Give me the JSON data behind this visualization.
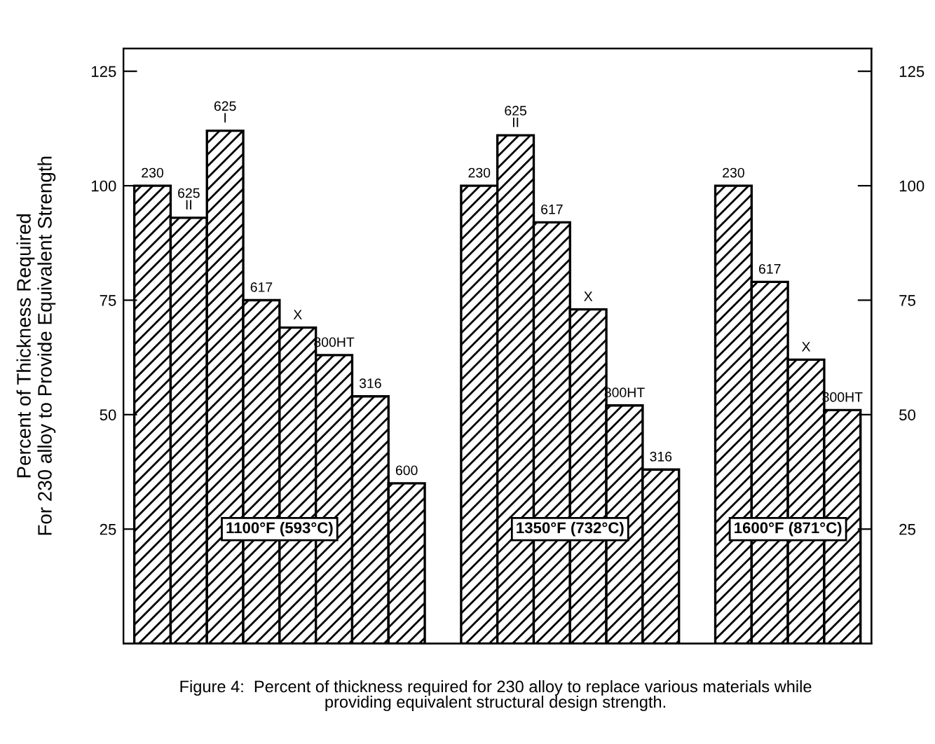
{
  "chart_data": {
    "type": "bar",
    "ylabel": "Percent of Thickness Required\nFor 230 alloy to Provide Equivalent Strength",
    "categories": [
      "230",
      "625\nII",
      "625\nI",
      "617",
      "X",
      "800HT",
      "316",
      "600",
      null,
      "230",
      "625\nII",
      "617",
      "X",
      "800HT",
      "316",
      null,
      "230",
      "617",
      "X",
      "800HT"
    ],
    "values": [
      100,
      93,
      112,
      75,
      69,
      63,
      54,
      35,
      null,
      100,
      111,
      92,
      73,
      52,
      38,
      null,
      100,
      79,
      62,
      51
    ],
    "color": "#000000",
    "ylim": [
      0,
      130
    ],
    "yticks": [
      25,
      50,
      75,
      100,
      125
    ],
    "y2lim": [
      0,
      130
    ],
    "y2ticks": [
      25,
      50,
      75,
      100,
      125
    ],
    "grid": false,
    "annotations": [
      "1100°F (593°C)",
      "1350°F (732°C)",
      "1600°F (871°C)",
      "Figure 4:  Percent of thickness required for 230 alloy to replace various materials while\nproviding equivalent structural design strength."
    ]
  }
}
